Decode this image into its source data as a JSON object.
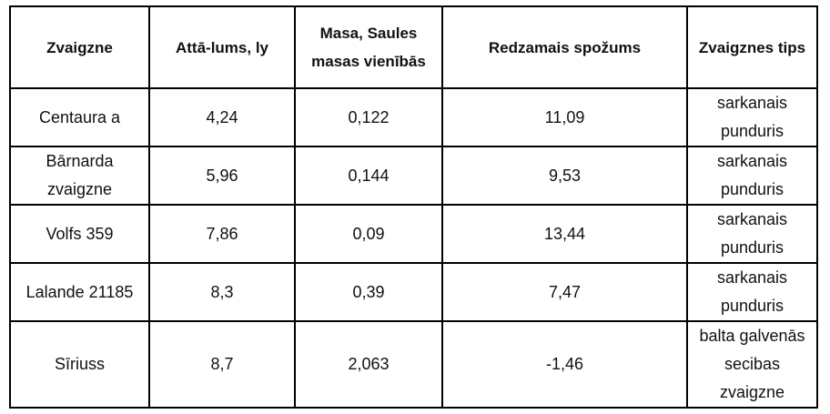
{
  "table": {
    "header": [
      "Zvaigzne",
      "Attā-lums, ly",
      "Masa, Saules masas vienībās",
      "Redzamais spožums",
      "Zvaigznes tips"
    ],
    "rows": [
      [
        "Centaura a",
        "4,24",
        "0,122",
        "11,09",
        "sarkanais punduris"
      ],
      [
        "Bārnarda zvaigzne",
        "5,96",
        "0,144",
        "9,53",
        "sarkanais punduris"
      ],
      [
        "Volfs 359",
        "7,86",
        "0,09",
        "13,44",
        "sarkanais punduris"
      ],
      [
        "Lalande 21185",
        "8,3",
        "0,39",
        "7,47",
        "sarkanais punduris"
      ],
      [
        "Sīriuss",
        "8,7",
        "2,063",
        "-1,46",
        "balta galvenās secibas zvaigzne"
      ]
    ]
  }
}
